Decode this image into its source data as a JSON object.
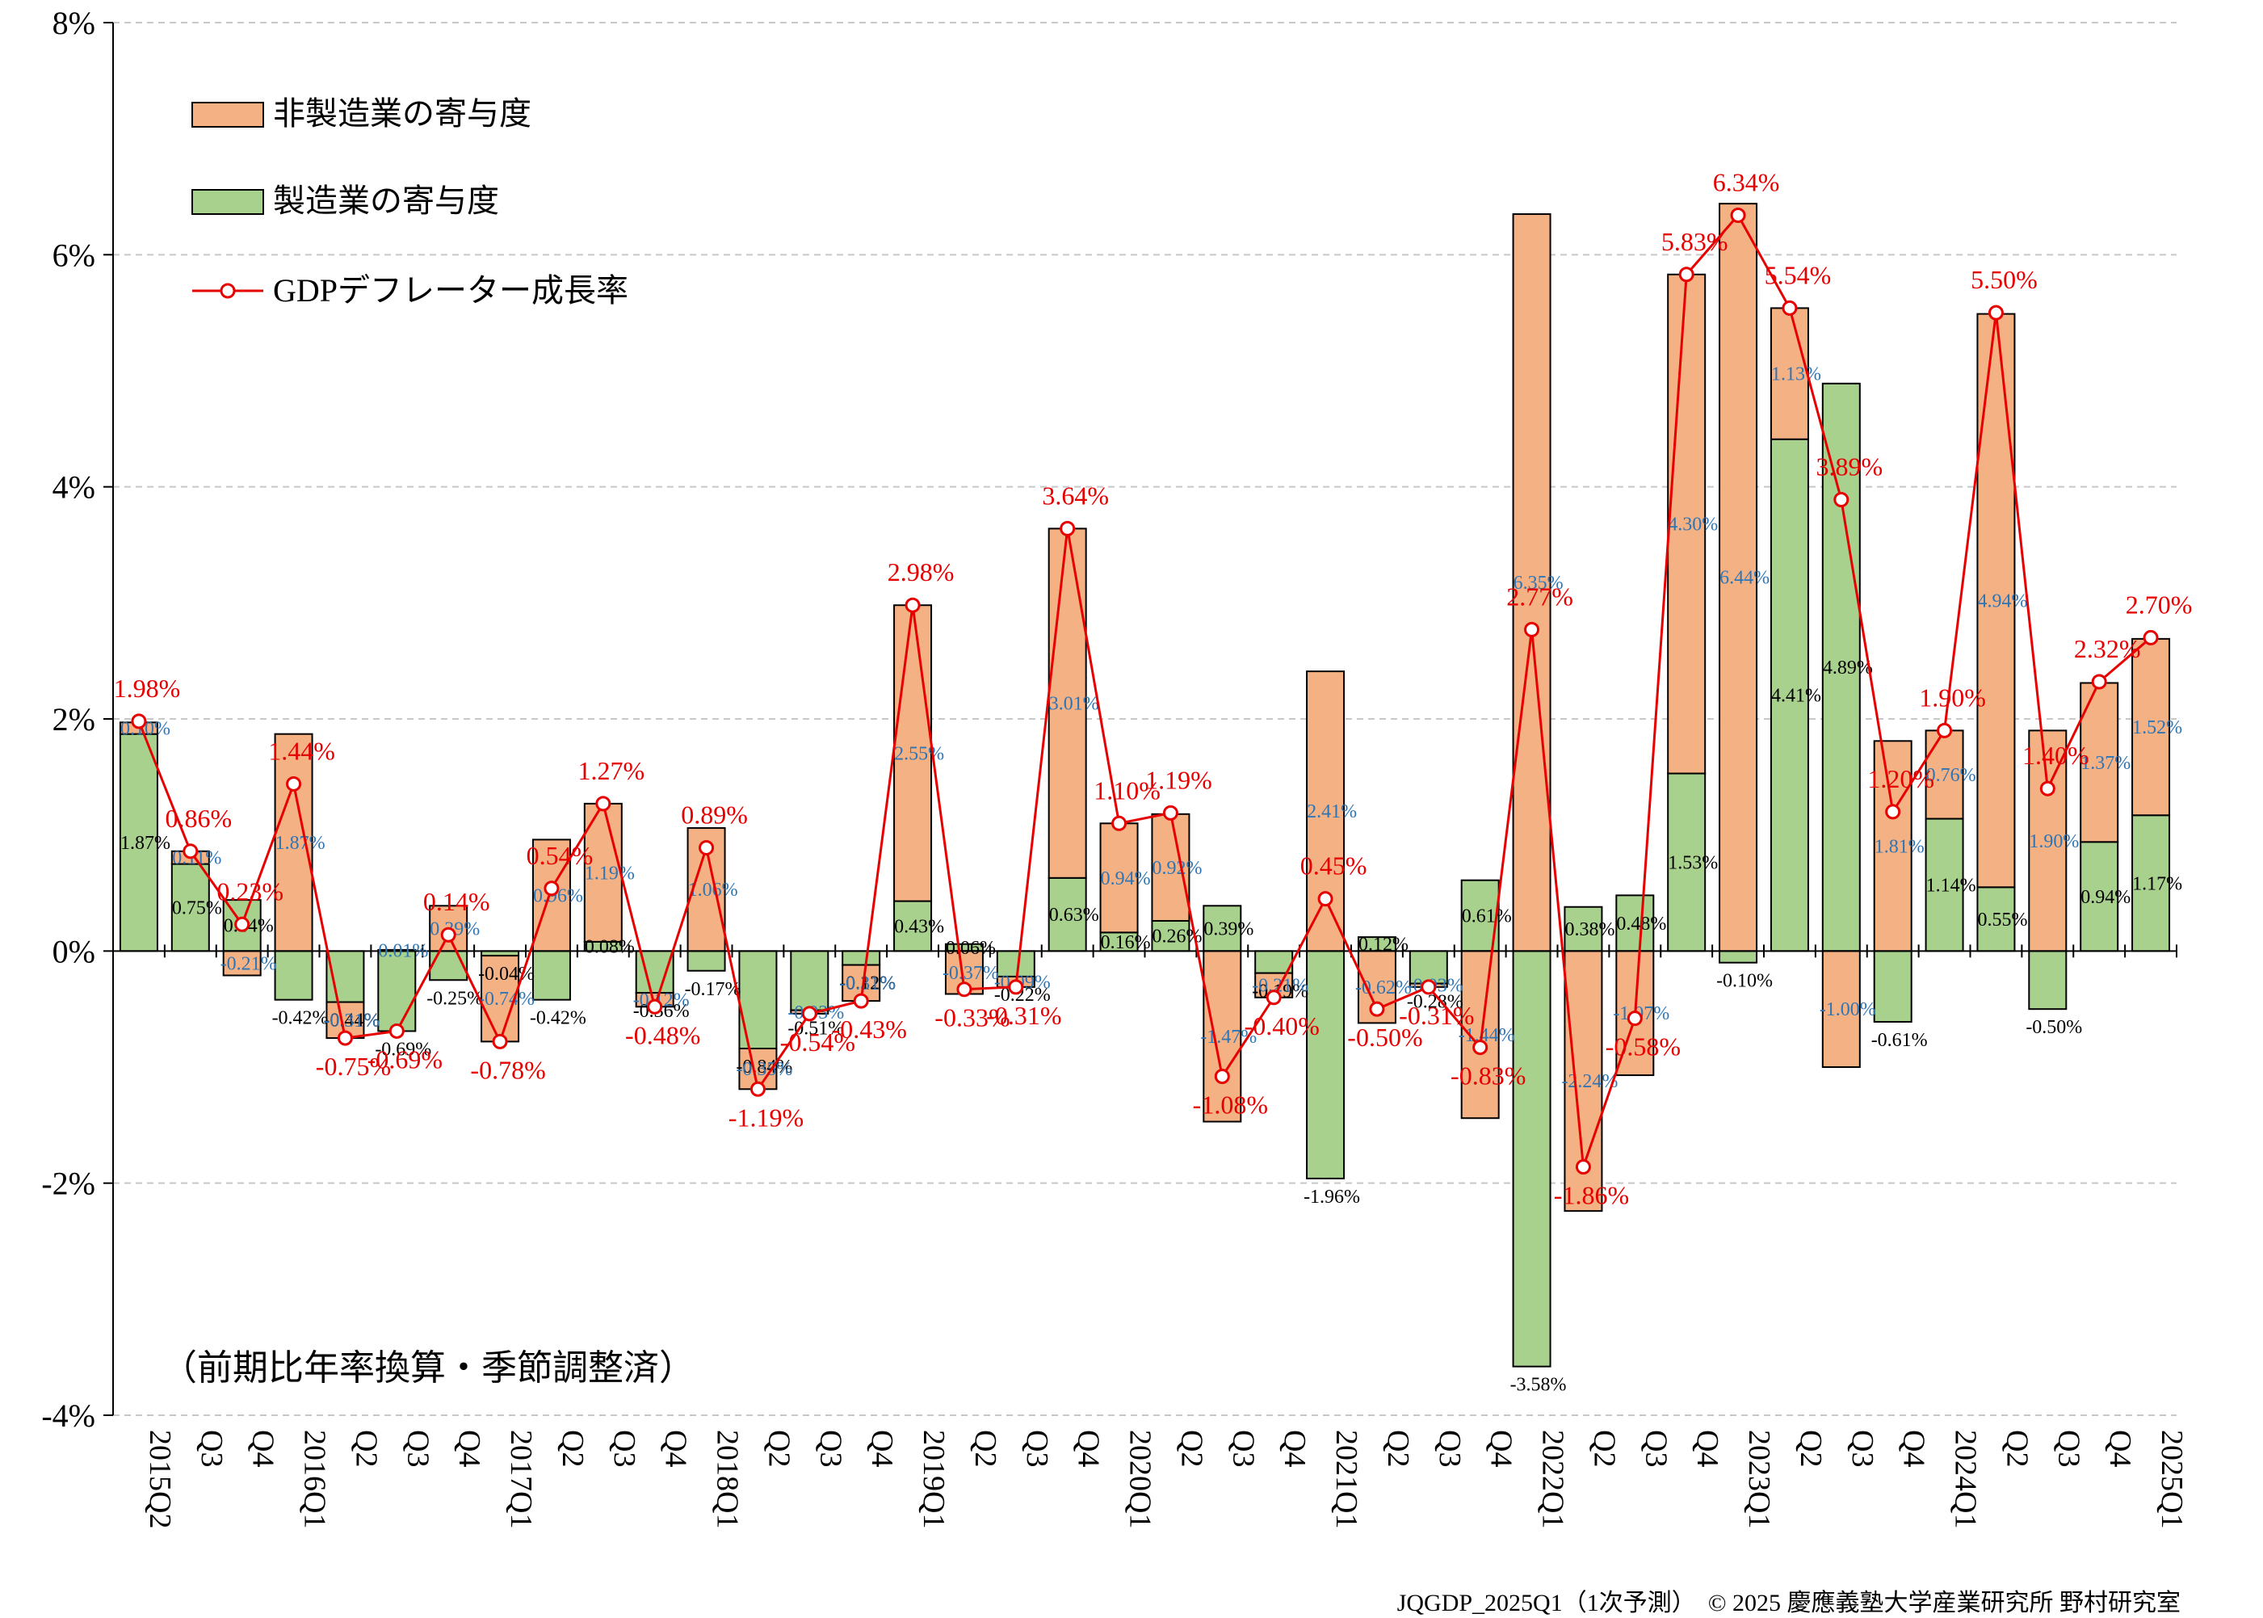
{
  "footer": "JQGDP_2025Q1（1次予測）　© 2025 慶應義塾大学産業研究所 野村研究室",
  "note": "（前期比年率換算・季節調整済）",
  "colors": {
    "non_manufacturing": "#f4b183",
    "manufacturing": "#a9d18e",
    "line": "#e60000",
    "mfg_label": "#000000",
    "nonmfg_label": "#2e75b6",
    "grid": "#c8c8c8"
  },
  "chart_data": {
    "type": "bar",
    "stacked": true,
    "legend_position": "top-left",
    "ylim": [
      -4,
      8
    ],
    "yticks": [
      -4,
      -2,
      0,
      2,
      4,
      6,
      8
    ],
    "ytick_labels": [
      "-4%",
      "-2%",
      "0%",
      "2%",
      "4%",
      "6%",
      "8%"
    ],
    "categories": [
      "2015Q2",
      "Q3",
      "Q4",
      "2016Q1",
      "Q2",
      "Q3",
      "Q4",
      "2017Q1",
      "Q2",
      "Q3",
      "Q4",
      "2018Q1",
      "Q2",
      "Q3",
      "Q4",
      "2019Q1",
      "Q2",
      "Q3",
      "Q4",
      "2020Q1",
      "Q2",
      "Q3",
      "Q4",
      "2021Q1",
      "Q2",
      "Q3",
      "Q4",
      "2022Q1",
      "Q2",
      "Q3",
      "Q4",
      "2023Q1",
      "Q2",
      "Q3",
      "Q4",
      "2024Q1",
      "Q2",
      "Q3",
      "Q4",
      "2025Q1"
    ],
    "series": [
      {
        "name": "非製造業の寄与度",
        "values": [
          0.1,
          0.11,
          -0.21,
          1.87,
          -0.31,
          0.01,
          0.39,
          -0.74,
          0.96,
          1.19,
          -0.12,
          1.06,
          -0.35,
          -0.03,
          -0.31,
          2.55,
          -0.37,
          -0.09,
          3.01,
          0.94,
          0.92,
          -1.47,
          -0.21,
          2.41,
          -0.62,
          -0.03,
          -1.44,
          6.35,
          -2.24,
          -1.07,
          4.3,
          6.44,
          1.13,
          -1.0,
          1.81,
          0.76,
          4.94,
          1.9,
          1.37,
          1.52
        ]
      },
      {
        "name": "製造業の寄与度",
        "values": [
          1.87,
          0.75,
          0.44,
          -0.42,
          -0.44,
          -0.69,
          -0.25,
          -0.04,
          -0.42,
          0.08,
          -0.36,
          -0.17,
          -0.84,
          -0.51,
          -0.12,
          0.43,
          0.06,
          -0.22,
          0.63,
          0.16,
          0.26,
          0.39,
          -0.19,
          -1.96,
          0.12,
          -0.28,
          0.61,
          -3.58,
          0.38,
          0.48,
          1.53,
          -0.1,
          4.41,
          4.89,
          -0.61,
          1.14,
          0.55,
          -0.5,
          0.94,
          1.17
        ]
      },
      {
        "name": "GDPデフレーター成長率",
        "type": "line",
        "values": [
          1.98,
          0.86,
          0.23,
          1.44,
          -0.75,
          -0.69,
          0.14,
          -0.78,
          0.54,
          1.27,
          -0.48,
          0.89,
          -1.19,
          -0.54,
          -0.43,
          2.98,
          -0.33,
          -0.31,
          3.64,
          1.1,
          1.19,
          -1.08,
          -0.4,
          0.45,
          -0.5,
          -0.31,
          -0.83,
          2.77,
          -1.86,
          -0.58,
          5.83,
          6.34,
          5.54,
          3.89,
          1.2,
          1.9,
          5.5,
          1.4,
          2.32,
          2.7
        ]
      }
    ]
  }
}
